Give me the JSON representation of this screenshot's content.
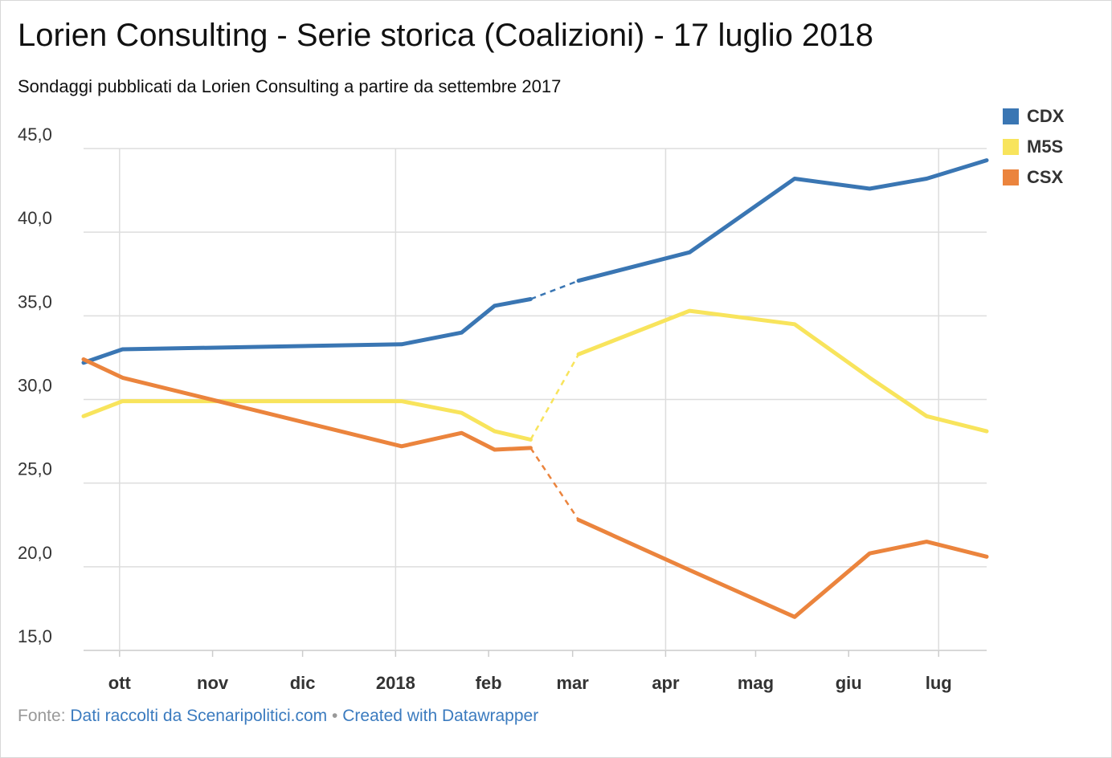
{
  "title": "Lorien Consulting - Serie storica (Coalizioni) - 17 luglio 2018",
  "subtitle": "Sondaggi pubblicati da Lorien Consulting a partire da settembre 2017",
  "footer": {
    "prefix": "Fonte:",
    "source_link": "Dati raccolti da Scenaripolitici.com",
    "separator": "•",
    "credit_link": "Created with Datawrapper"
  },
  "chart_data": {
    "type": "line",
    "title": "Lorien Consulting - Serie storica (Coalizioni) - 17 luglio 2018",
    "subtitle": "Sondaggi pubblicati da Lorien Consulting a partire da settembre 2017",
    "xlabel": "",
    "ylabel": "",
    "ylim": [
      15,
      45
    ],
    "xlim": [
      "2017-09-19",
      "2018-07-17"
    ],
    "y_ticks": [
      45,
      40,
      35,
      30,
      25,
      20,
      15
    ],
    "y_tick_labels": [
      "45,0",
      "40,0",
      "35,0",
      "30,0",
      "25,0",
      "20,0",
      "15,0"
    ],
    "x_ticks": [
      {
        "date": "2017-10-01",
        "label": "ott"
      },
      {
        "date": "2017-11-01",
        "label": "nov"
      },
      {
        "date": "2017-12-01",
        "label": "dic"
      },
      {
        "date": "2018-01-01",
        "label": "2018"
      },
      {
        "date": "2018-02-01",
        "label": "feb"
      },
      {
        "date": "2018-03-01",
        "label": "mar"
      },
      {
        "date": "2018-04-01",
        "label": "apr"
      },
      {
        "date": "2018-05-01",
        "label": "mag"
      },
      {
        "date": "2018-06-01",
        "label": "giu"
      },
      {
        "date": "2018-07-01",
        "label": "lug"
      }
    ],
    "vertical_grid_dates": [
      "2017-10-01",
      "2018-01-01",
      "2018-04-01",
      "2018-07-01"
    ],
    "grid": true,
    "legend_position": "top-right",
    "gap": {
      "from": "2018-02-15",
      "to": "2018-03-03",
      "style": "dashed"
    },
    "x": [
      "2017-09-19",
      "2017-10-02",
      "2018-01-03",
      "2018-01-23",
      "2018-02-03",
      "2018-02-15",
      "2018-03-03",
      "2018-04-09",
      "2018-05-14",
      "2018-06-08",
      "2018-06-27",
      "2018-07-17"
    ],
    "series": [
      {
        "name": "CDX",
        "color": "#3a76b3",
        "values": [
          32.2,
          33.0,
          33.3,
          34.0,
          35.6,
          36.0,
          37.1,
          38.8,
          43.2,
          42.6,
          43.2,
          44.3
        ]
      },
      {
        "name": "M5S",
        "color": "#f8e45c",
        "values": [
          29.0,
          29.9,
          29.9,
          29.2,
          28.1,
          27.6,
          32.7,
          35.3,
          34.5,
          31.3,
          29.0,
          28.1
        ]
      },
      {
        "name": "CSX",
        "color": "#eb843d",
        "values": [
          32.4,
          31.3,
          27.2,
          28.0,
          27.0,
          27.1,
          22.8,
          19.8,
          17.0,
          20.8,
          21.5,
          20.6
        ]
      }
    ]
  }
}
